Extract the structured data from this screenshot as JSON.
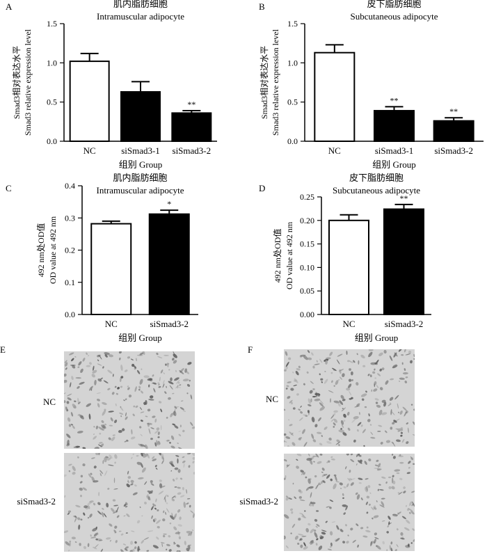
{
  "chart_data": [
    {
      "panel": "A",
      "type": "bar",
      "title": "肌内脂肪细胞",
      "subtitle": "Intramuscular adipocyte",
      "ylabel_cn": "Smad3相对表达水平",
      "ylabel_en": "Smad3 relative expression level",
      "xlabel": "组别  Group",
      "categories": [
        "NC",
        "siSmad3-1",
        "siSmad3-2"
      ],
      "values": [
        1.02,
        0.63,
        0.36
      ],
      "errors": [
        0.1,
        0.13,
        0.03
      ],
      "significance": [
        "",
        "",
        "**"
      ],
      "fill": [
        "#ffffff",
        "#000000",
        "#000000"
      ],
      "ylim": [
        0,
        1.5
      ],
      "yticks": [
        "0.0",
        "0.5",
        "1.0",
        "1.5"
      ]
    },
    {
      "panel": "B",
      "type": "bar",
      "title": "皮下脂肪细胞",
      "subtitle": "Subcutaneous adipocyte",
      "ylabel_cn": "Smad3相对表达水平",
      "ylabel_en": "Smad3 relative expression level",
      "xlabel": "组别  Group",
      "categories": [
        "NC",
        "siSmad3-1",
        "siSmad3-2"
      ],
      "values": [
        1.13,
        0.39,
        0.26
      ],
      "errors": [
        0.1,
        0.05,
        0.04
      ],
      "significance": [
        "",
        "**",
        "**"
      ],
      "fill": [
        "#ffffff",
        "#000000",
        "#000000"
      ],
      "ylim": [
        0,
        1.5
      ],
      "yticks": [
        "0.0",
        "0.5",
        "1.0",
        "1.5"
      ]
    },
    {
      "panel": "C",
      "type": "bar",
      "title": "肌内脂肪细胞",
      "subtitle": "Intramuscular adipocyte",
      "ylabel_cn": "492 nm处OD值",
      "ylabel_en": "OD value at 492 nm",
      "xlabel": "组别  Group",
      "categories": [
        "NC",
        "siSmad3-2"
      ],
      "values": [
        0.282,
        0.312
      ],
      "errors": [
        0.008,
        0.012
      ],
      "significance": [
        "",
        "*"
      ],
      "fill": [
        "#ffffff",
        "#000000"
      ],
      "ylim": [
        0,
        0.4
      ],
      "yticks": [
        "0.0",
        "0.1",
        "0.2",
        "0.3",
        "0.4"
      ]
    },
    {
      "panel": "D",
      "type": "bar",
      "title": "皮下脂肪细胞",
      "subtitle": "Subcutaneous adipocyte",
      "ylabel_cn": "492 nm处OD值",
      "ylabel_en": "OD value at 492 nm",
      "xlabel": "组别  Group",
      "categories": [
        "NC",
        "siSmad3-2"
      ],
      "values": [
        0.2,
        0.224
      ],
      "errors": [
        0.012,
        0.01
      ],
      "significance": [
        "",
        "**"
      ],
      "fill": [
        "#ffffff",
        "#000000"
      ],
      "ylim": [
        0,
        0.25
      ],
      "yticks": [
        "0.00",
        "0.05",
        "0.10",
        "0.15",
        "0.20",
        "0.25"
      ]
    }
  ],
  "images": {
    "E": {
      "letter": "E",
      "rows": [
        "NC",
        "siSmad3-2"
      ]
    },
    "F": {
      "letter": "F",
      "rows": [
        "NC",
        "siSmad3-2"
      ]
    }
  }
}
